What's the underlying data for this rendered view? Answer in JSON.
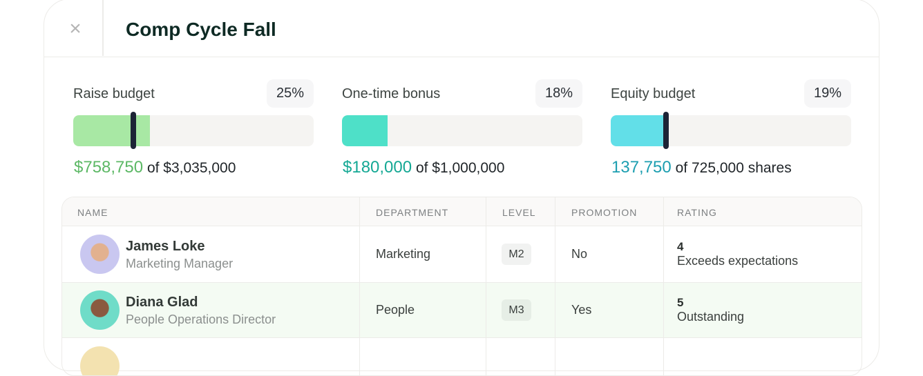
{
  "header": {
    "title": "Comp Cycle Fall",
    "close_icon": "close-icon"
  },
  "budgets": [
    {
      "label": "Raise budget",
      "percent": "25%",
      "amount": "$758,750",
      "total": "of $3,035,000",
      "fill_percent": 32,
      "marker_percent": 25,
      "color": "#a8e8a4",
      "amount_color": "#5cb865"
    },
    {
      "label": "One-time bonus",
      "percent": "18%",
      "amount": "$180,000",
      "total": "of $1,000,000",
      "fill_percent": 19,
      "color": "#4ee0c8",
      "amount_color": "#14a894"
    },
    {
      "label": "Equity budget",
      "percent": "19%",
      "amount": "137,750",
      "total": "of 725,000 shares",
      "fill_percent": 22,
      "marker_percent": 23,
      "color": "#62dfe8",
      "amount_color": "#1c9eb0"
    }
  ],
  "table": {
    "columns": [
      "NAME",
      "DEPARTMENT",
      "LEVEL",
      "PROMOTION",
      "RATING"
    ],
    "rows": [
      {
        "name": "James Loke",
        "role": "Marketing Manager",
        "department": "Marketing",
        "level": "M2",
        "promotion": "No",
        "rating": "4",
        "rating_label": "Exceeds expectations"
      },
      {
        "name": "Diana Glad",
        "role": "People Operations Director",
        "department": "People",
        "level": "M3",
        "promotion": "Yes",
        "rating": "5",
        "rating_label": "Outstanding"
      }
    ]
  }
}
